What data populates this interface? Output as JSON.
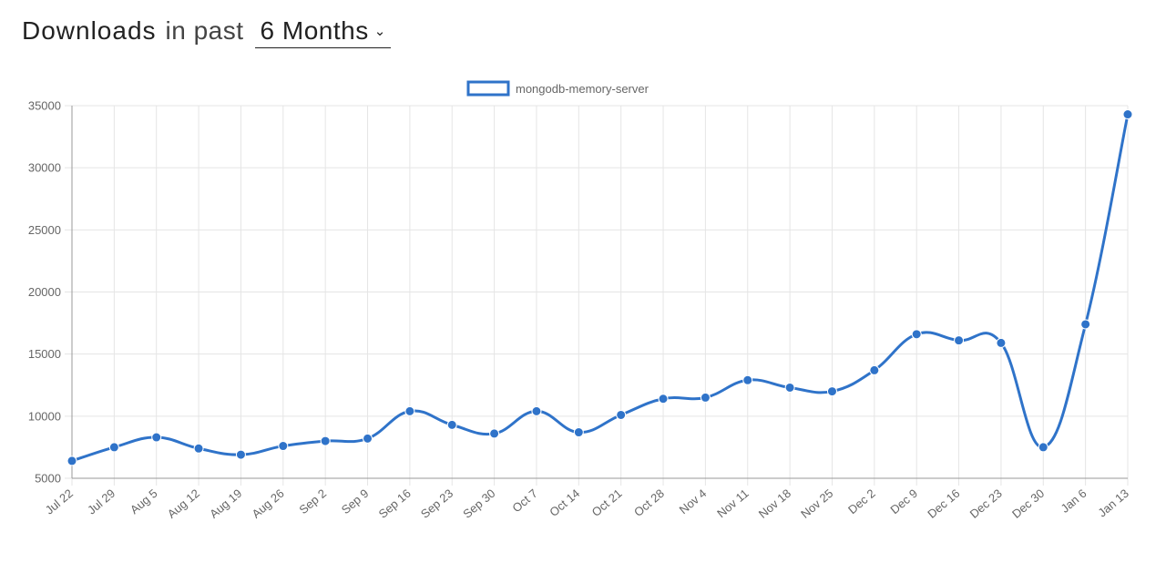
{
  "header": {
    "title_strong": "Downloads",
    "title_light": "in past",
    "period": "6 Months",
    "chevron": "⌄"
  },
  "colors": {
    "series": "#2f73c9",
    "grid": "#e5e5e5",
    "axis": "#999999",
    "text": "#666666"
  },
  "chart_data": {
    "type": "line",
    "title": "",
    "xlabel": "",
    "ylabel": "",
    "ylim": [
      5000,
      35000
    ],
    "yticks": [
      5000,
      10000,
      15000,
      20000,
      25000,
      30000,
      35000
    ],
    "grid": true,
    "legend": "top-center",
    "categories": [
      "Jul 22",
      "Jul 29",
      "Aug 5",
      "Aug 12",
      "Aug 19",
      "Aug 26",
      "Sep 2",
      "Sep 9",
      "Sep 16",
      "Sep 23",
      "Sep 30",
      "Oct 7",
      "Oct 14",
      "Oct 21",
      "Oct 28",
      "Nov 4",
      "Nov 11",
      "Nov 18",
      "Nov 25",
      "Dec 2",
      "Dec 9",
      "Dec 16",
      "Dec 23",
      "Dec 30",
      "Jan 6",
      "Jan 13"
    ],
    "series": [
      {
        "name": "mongodb-memory-server",
        "values": [
          6400,
          7500,
          8300,
          7400,
          6900,
          7600,
          8000,
          8200,
          10400,
          9300,
          8600,
          10400,
          8700,
          10100,
          11400,
          11500,
          12900,
          12300,
          12000,
          13700,
          16600,
          16100,
          15900,
          7500,
          17400,
          34300
        ]
      }
    ]
  }
}
